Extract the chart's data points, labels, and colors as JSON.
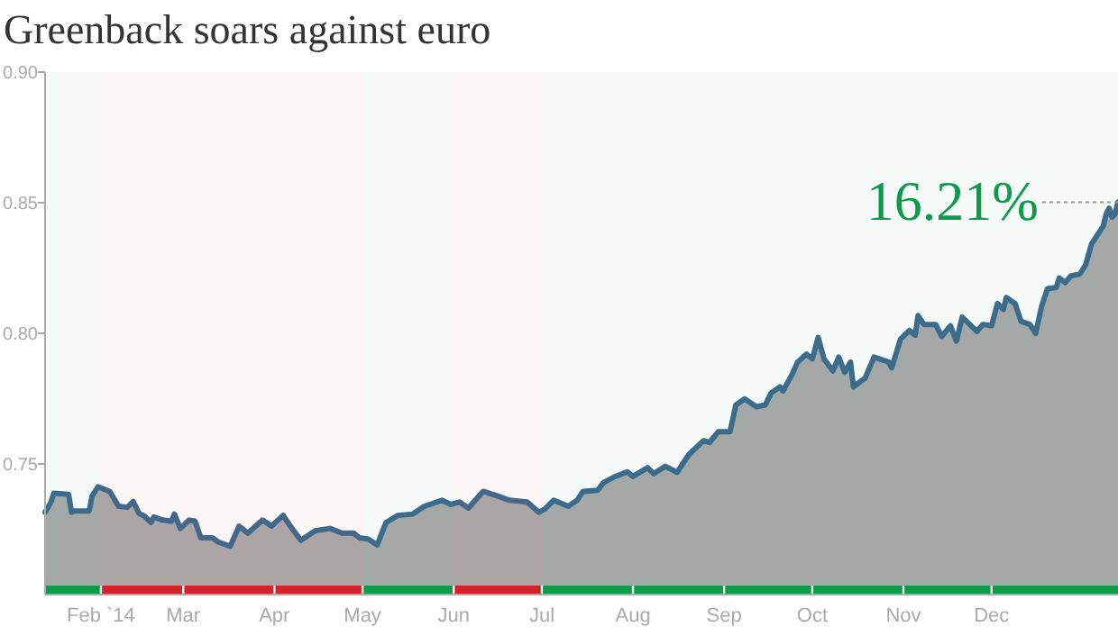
{
  "chart_data": {
    "type": "area",
    "title": "Greenback soars against euro",
    "x": [
      "2014-01-13",
      "2014-01-15",
      "2014-01-16",
      "2014-01-21",
      "2014-01-22",
      "2014-01-23",
      "2014-01-28",
      "2014-01-29",
      "2014-01-31",
      "2014-02-04",
      "2014-02-07",
      "2014-02-10",
      "2014-02-12",
      "2014-02-14",
      "2014-02-16",
      "2014-02-18",
      "2014-02-19",
      "2014-02-22",
      "2014-02-25",
      "2014-02-26",
      "2014-02-28",
      "2014-03-03",
      "2014-03-05",
      "2014-03-07",
      "2014-03-11",
      "2014-03-13",
      "2014-03-17",
      "2014-03-20",
      "2014-03-23",
      "2014-03-28",
      "2014-03-31",
      "2014-04-04",
      "2014-04-06",
      "2014-04-10",
      "2014-04-15",
      "2014-04-20",
      "2014-04-24",
      "2014-04-28",
      "2014-04-30",
      "2014-05-03",
      "2014-05-06",
      "2014-05-09",
      "2014-05-13",
      "2014-05-18",
      "2014-05-22",
      "2014-05-28",
      "2014-05-31",
      "2014-06-03",
      "2014-06-06",
      "2014-06-11",
      "2014-06-16",
      "2014-06-20",
      "2014-06-26",
      "2014-06-30",
      "2014-07-02",
      "2014-07-05",
      "2014-07-10",
      "2014-07-13",
      "2014-07-15",
      "2014-07-20",
      "2014-07-22",
      "2014-07-26",
      "2014-07-30",
      "2014-08-01",
      "2014-08-06",
      "2014-08-08",
      "2014-08-12",
      "2014-08-16",
      "2014-08-20",
      "2014-08-25",
      "2014-08-27",
      "2014-08-30",
      "2014-09-03",
      "2014-09-05",
      "2014-09-08",
      "2014-09-12",
      "2014-09-15",
      "2014-09-17",
      "2014-09-20",
      "2014-09-21",
      "2014-09-24",
      "2014-09-26",
      "2014-09-29",
      "2014-10-01",
      "2014-10-03",
      "2014-10-05",
      "2014-10-08",
      "2014-10-10",
      "2014-10-12",
      "2014-10-14",
      "2014-10-15",
      "2014-10-19",
      "2014-10-22",
      "2014-10-27",
      "2014-10-28",
      "2014-10-31",
      "2014-11-03",
      "2014-11-05",
      "2014-11-06",
      "2014-11-08",
      "2014-11-12",
      "2014-11-14",
      "2014-11-17",
      "2014-11-19",
      "2014-11-21",
      "2014-11-26",
      "2014-11-28",
      "2014-12-01",
      "2014-12-03",
      "2014-12-05",
      "2014-12-06",
      "2014-12-09",
      "2014-12-11",
      "2014-12-14",
      "2014-12-16",
      "2014-12-18",
      "2014-12-20",
      "2014-12-23",
      "2014-12-24",
      "2014-12-26",
      "2014-12-28",
      "2014-12-31",
      "2015-01-02",
      "2015-01-04",
      "2015-01-08",
      "2015-01-09",
      "2015-01-10",
      "2015-01-11",
      "2015-01-12",
      "2015-01-13"
    ],
    "series": [
      {
        "color": "#3f6b8f",
        "values": [
          0.7315,
          0.7354,
          0.7388,
          0.7384,
          0.7315,
          0.732,
          0.732,
          0.7377,
          0.7413,
          0.7395,
          0.7338,
          0.7334,
          0.7356,
          0.731,
          0.7299,
          0.7276,
          0.7297,
          0.7285,
          0.7281,
          0.7308,
          0.7253,
          0.7285,
          0.7281,
          0.7217,
          0.7217,
          0.7201,
          0.7185,
          0.7262,
          0.7235,
          0.7285,
          0.7262,
          0.7303,
          0.7269,
          0.7208,
          0.7245,
          0.7253,
          0.7235,
          0.7235,
          0.7217,
          0.7212,
          0.719,
          0.7276,
          0.7303,
          0.7308,
          0.7338,
          0.7361,
          0.7345,
          0.7354,
          0.7331,
          0.7395,
          0.7377,
          0.7361,
          0.7354,
          0.7315,
          0.7327,
          0.7361,
          0.7338,
          0.7361,
          0.7395,
          0.7399,
          0.7429,
          0.7452,
          0.747,
          0.7452,
          0.7486,
          0.7463,
          0.7491,
          0.7468,
          0.7536,
          0.7589,
          0.7582,
          0.7623,
          0.7623,
          0.7726,
          0.7749,
          0.7719,
          0.7726,
          0.7772,
          0.7795,
          0.7779,
          0.784,
          0.789,
          0.792,
          0.7902,
          0.7984,
          0.7902,
          0.7856,
          0.7909,
          0.7851,
          0.789,
          0.7795,
          0.7829,
          0.7909,
          0.789,
          0.7868,
          0.7977,
          0.8011,
          0.7993,
          0.8068,
          0.8034,
          0.8034,
          0.7988,
          0.8029,
          0.797,
          0.8062,
          0.8007,
          0.8034,
          0.8029,
          0.8114,
          0.8091,
          0.8137,
          0.8114,
          0.8046,
          0.8034,
          0.8,
          0.8103,
          0.8171,
          0.8176,
          0.8212,
          0.8194,
          0.822,
          0.8227,
          0.8262,
          0.8342,
          0.8411,
          0.8457,
          0.8479,
          0.8445,
          0.8457,
          0.8502
        ]
      }
    ],
    "xlim": [
      "2014-01-13",
      "2015-01-13"
    ],
    "xticks": [
      {
        "value": "2014-02-01",
        "label": "Feb `14"
      },
      {
        "value": "2014-03-01",
        "label": "Mar"
      },
      {
        "value": "2014-04-01",
        "label": "Apr"
      },
      {
        "value": "2014-05-01",
        "label": "May"
      },
      {
        "value": "2014-06-01",
        "label": "Jun"
      },
      {
        "value": "2014-07-01",
        "label": "Jul"
      },
      {
        "value": "2014-08-01",
        "label": "Aug"
      },
      {
        "value": "2014-09-01",
        "label": "Sep"
      },
      {
        "value": "2014-10-01",
        "label": "Oct"
      },
      {
        "value": "2014-11-01",
        "label": "Nov"
      },
      {
        "value": "2014-12-01",
        "label": "Dec"
      }
    ],
    "ylim": [
      0.7,
      0.9
    ],
    "yticks": [
      0.75,
      {
        "value": 0.8,
        "label": "0.80"
      },
      0.85,
      {
        "value": 0.9,
        "label": "0.90"
      }
    ],
    "bands": [
      {
        "axis": "x",
        "from": "2014-01-13",
        "to": "2014-02-01",
        "color": "#0c9a4b"
      },
      {
        "axis": "x",
        "from": "2014-02-01",
        "to": "2014-03-01",
        "color": "#d2232a"
      },
      {
        "axis": "x",
        "from": "2014-03-01",
        "to": "2014-04-01",
        "color": "#d2232a"
      },
      {
        "axis": "x",
        "from": "2014-04-01",
        "to": "2014-05-01",
        "color": "#d2232a"
      },
      {
        "axis": "x",
        "from": "2014-05-01",
        "to": "2014-06-01",
        "color": "#0c9a4b"
      },
      {
        "axis": "x",
        "from": "2014-06-01",
        "to": "2014-07-01",
        "color": "#d2232a"
      },
      {
        "axis": "x",
        "from": "2014-07-01",
        "to": "2014-08-01",
        "color": "#0c9a4b"
      },
      {
        "axis": "x",
        "from": "2014-08-01",
        "to": "2014-09-01",
        "color": "#0c9a4b"
      },
      {
        "axis": "x",
        "from": "2014-09-01",
        "to": "2014-10-01",
        "color": "#0c9a4b"
      },
      {
        "axis": "x",
        "from": "2014-10-01",
        "to": "2014-11-01",
        "color": "#0c9a4b"
      },
      {
        "axis": "x",
        "from": "2014-11-01",
        "to": "2014-12-01",
        "color": "#0c9a4b"
      },
      {
        "axis": "x",
        "from": "2014-12-01",
        "to": "2015-01-13",
        "color": "#0c9a4b"
      }
    ],
    "annotations": [
      {
        "text": "16.21%",
        "x": "2015-01-13",
        "y": 0.8502
      }
    ],
    "grid": false
  }
}
